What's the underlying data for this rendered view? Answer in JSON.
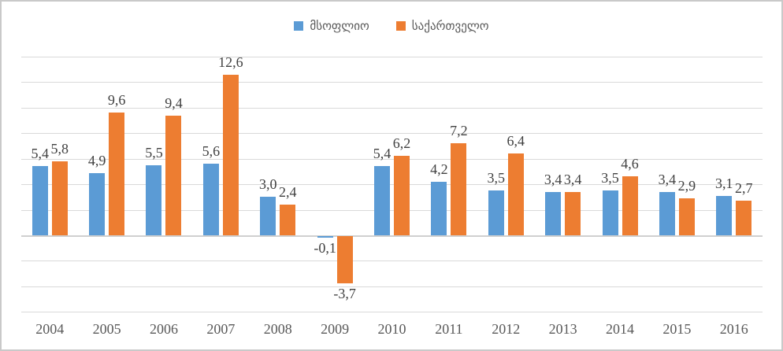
{
  "legend": {
    "items": [
      {
        "key": "world",
        "label": "მსოფლიო"
      },
      {
        "key": "georgia",
        "label": "საქართველო"
      }
    ]
  },
  "chart_data": {
    "type": "bar",
    "title": "",
    "xlabel": "",
    "ylabel": "",
    "grid": true,
    "legend_position": "top",
    "ylim": [
      -6,
      14
    ],
    "gridline_step": 2,
    "decimal_separator": ",",
    "categories": [
      "2004",
      "2005",
      "2006",
      "2007",
      "2008",
      "2009",
      "2010",
      "2011",
      "2012",
      "2013",
      "2014",
      "2015",
      "2016"
    ],
    "series": [
      {
        "key": "world",
        "name": "მსოფლიო",
        "color": "#5B9BD5",
        "values": [
          5.4,
          4.9,
          5.5,
          5.6,
          3.0,
          -0.1,
          5.4,
          4.2,
          3.5,
          3.4,
          3.5,
          3.4,
          3.1
        ],
        "labels": [
          "5,4",
          "4,9",
          "5,5",
          "5,6",
          "3,0",
          "-0,1",
          "5,4",
          "4,2",
          "3,5",
          "3,4",
          "3,5",
          "3,4",
          "3,1"
        ]
      },
      {
        "key": "georgia",
        "name": "საქართველო",
        "color": "#ED7D31",
        "values": [
          5.8,
          9.6,
          9.4,
          12.6,
          2.4,
          -3.7,
          6.2,
          7.2,
          6.4,
          3.4,
          4.6,
          2.9,
          2.7
        ],
        "labels": [
          "5,8",
          "9,6",
          "9,4",
          "12,6",
          "2,4",
          "-3,7",
          "6,2",
          "7,2",
          "6,4",
          "3,4",
          "4,6",
          "2,9",
          "2,7"
        ]
      }
    ],
    "colors": {
      "gridline": "#D9D9D9",
      "data_label": "#404040",
      "axis_label": "#595959"
    }
  }
}
